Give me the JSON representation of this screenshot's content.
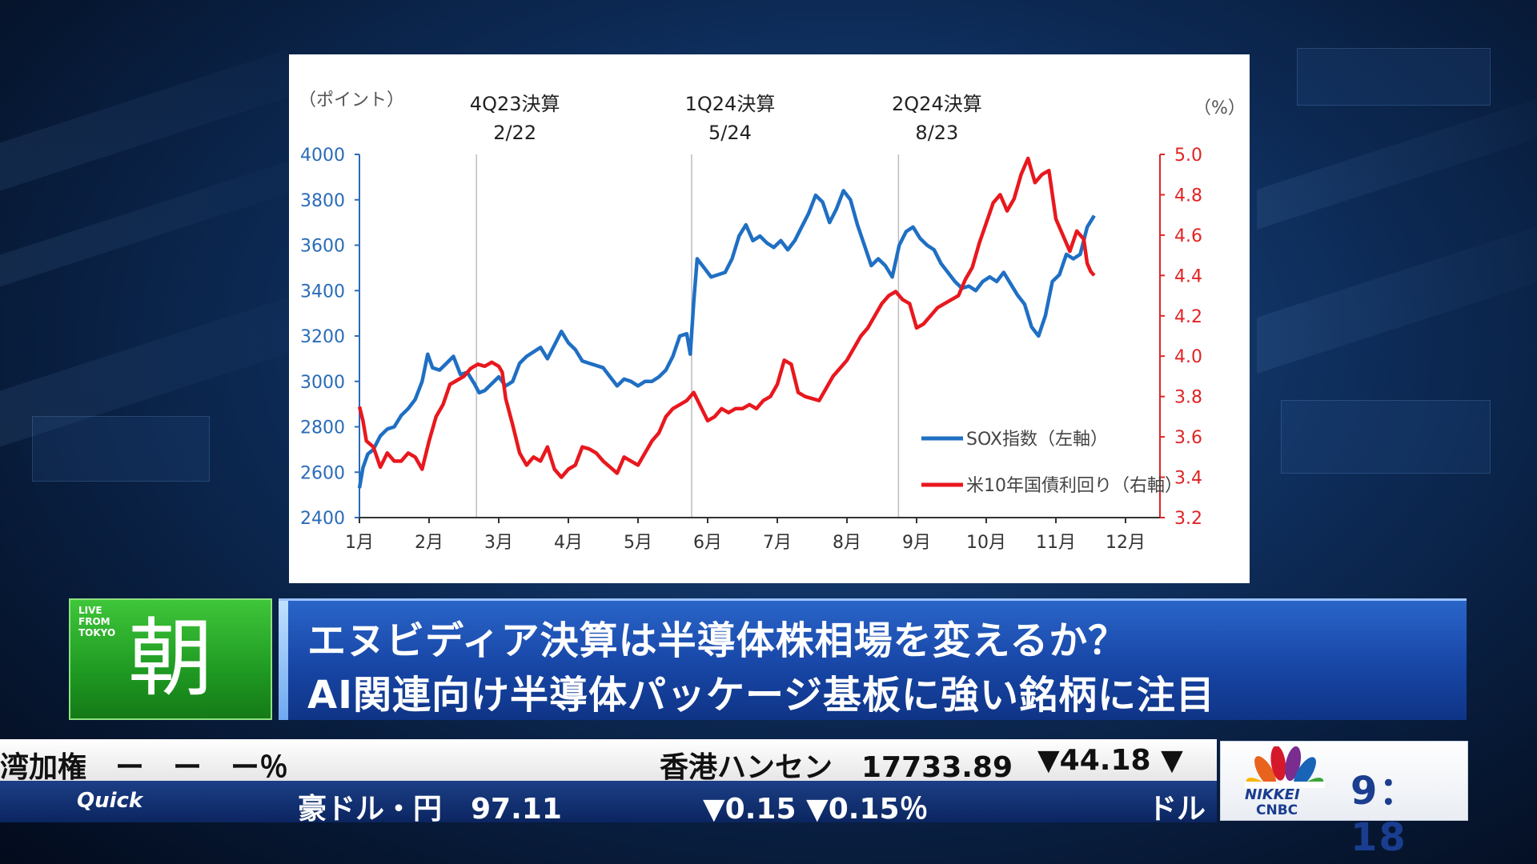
{
  "chart_data": {
    "type": "line",
    "left_axis": {
      "unit_label": "（ポイント）",
      "ticks": [
        "4000",
        "3800",
        "3600",
        "3400",
        "3200",
        "3000",
        "2800",
        "2600",
        "2400"
      ],
      "range": [
        2400,
        4000
      ]
    },
    "right_axis": {
      "unit_label": "（%）",
      "ticks": [
        "5.0",
        "4.8",
        "4.6",
        "4.4",
        "4.2",
        "4.0",
        "3.8",
        "3.6",
        "3.4",
        "3.2"
      ],
      "range": [
        3.2,
        5.0
      ]
    },
    "x_axis": {
      "ticks": [
        "1月",
        "2月",
        "3月",
        "4月",
        "5月",
        "6月",
        "7月",
        "8月",
        "9月",
        "10月",
        "11月",
        "12月"
      ],
      "range": [
        1,
        12
      ]
    },
    "events": [
      {
        "label": "4Q23決算",
        "date": "2/22",
        "x": 2.68
      },
      {
        "label": "1Q24決算",
        "date": "5/24",
        "x": 5.77
      },
      {
        "label": "2Q24決算",
        "date": "8/23",
        "x": 8.74
      }
    ],
    "series": [
      {
        "name": "SOX指数（左軸）",
        "color": "#1f6fc3",
        "axis": "left",
        "points": [
          [
            1.0,
            2530
          ],
          [
            1.05,
            2620
          ],
          [
            1.12,
            2680
          ],
          [
            1.2,
            2700
          ],
          [
            1.3,
            2760
          ],
          [
            1.4,
            2790
          ],
          [
            1.5,
            2800
          ],
          [
            1.6,
            2850
          ],
          [
            1.7,
            2880
          ],
          [
            1.8,
            2920
          ],
          [
            1.9,
            3000
          ],
          [
            1.98,
            3120
          ],
          [
            2.05,
            3060
          ],
          [
            2.15,
            3050
          ],
          [
            2.25,
            3080
          ],
          [
            2.35,
            3110
          ],
          [
            2.45,
            3030
          ],
          [
            2.55,
            3040
          ],
          [
            2.65,
            2990
          ],
          [
            2.72,
            2950
          ],
          [
            2.8,
            2960
          ],
          [
            2.9,
            2990
          ],
          [
            3.0,
            3020
          ],
          [
            3.1,
            2980
          ],
          [
            3.2,
            3000
          ],
          [
            3.3,
            3080
          ],
          [
            3.4,
            3110
          ],
          [
            3.5,
            3130
          ],
          [
            3.6,
            3150
          ],
          [
            3.7,
            3100
          ],
          [
            3.8,
            3160
          ],
          [
            3.9,
            3220
          ],
          [
            4.0,
            3170
          ],
          [
            4.1,
            3140
          ],
          [
            4.2,
            3090
          ],
          [
            4.3,
            3080
          ],
          [
            4.4,
            3070
          ],
          [
            4.5,
            3060
          ],
          [
            4.6,
            3020
          ],
          [
            4.7,
            2980
          ],
          [
            4.8,
            3010
          ],
          [
            4.9,
            3000
          ],
          [
            5.0,
            2980
          ],
          [
            5.1,
            3000
          ],
          [
            5.2,
            3000
          ],
          [
            5.3,
            3020
          ],
          [
            5.4,
            3050
          ],
          [
            5.5,
            3110
          ],
          [
            5.6,
            3200
          ],
          [
            5.7,
            3210
          ],
          [
            5.75,
            3120
          ],
          [
            5.8,
            3350
          ],
          [
            5.85,
            3540
          ],
          [
            5.95,
            3500
          ],
          [
            6.05,
            3460
          ],
          [
            6.15,
            3470
          ],
          [
            6.25,
            3480
          ],
          [
            6.35,
            3540
          ],
          [
            6.45,
            3640
          ],
          [
            6.55,
            3690
          ],
          [
            6.65,
            3620
          ],
          [
            6.75,
            3640
          ],
          [
            6.85,
            3610
          ],
          [
            6.95,
            3590
          ],
          [
            7.05,
            3620
          ],
          [
            7.15,
            3580
          ],
          [
            7.25,
            3620
          ],
          [
            7.35,
            3680
          ],
          [
            7.45,
            3740
          ],
          [
            7.55,
            3820
          ],
          [
            7.65,
            3790
          ],
          [
            7.75,
            3700
          ],
          [
            7.85,
            3760
          ],
          [
            7.95,
            3840
          ],
          [
            8.05,
            3800
          ],
          [
            8.15,
            3690
          ],
          [
            8.25,
            3600
          ],
          [
            8.35,
            3510
          ],
          [
            8.45,
            3540
          ],
          [
            8.55,
            3510
          ],
          [
            8.65,
            3460
          ],
          [
            8.75,
            3600
          ],
          [
            8.85,
            3660
          ],
          [
            8.95,
            3680
          ],
          [
            9.05,
            3630
          ],
          [
            9.15,
            3600
          ],
          [
            9.25,
            3580
          ],
          [
            9.35,
            3520
          ],
          [
            9.45,
            3480
          ],
          [
            9.55,
            3440
          ],
          [
            9.65,
            3410
          ],
          [
            9.75,
            3420
          ],
          [
            9.85,
            3400
          ],
          [
            9.95,
            3440
          ],
          [
            10.05,
            3460
          ],
          [
            10.15,
            3440
          ],
          [
            10.25,
            3480
          ],
          [
            10.35,
            3430
          ],
          [
            10.45,
            3380
          ],
          [
            10.55,
            3340
          ],
          [
            10.65,
            3240
          ],
          [
            10.75,
            3200
          ],
          [
            10.85,
            3290
          ],
          [
            10.95,
            3440
          ],
          [
            11.05,
            3470
          ],
          [
            11.15,
            3560
          ],
          [
            11.25,
            3540
          ],
          [
            11.35,
            3560
          ],
          [
            11.45,
            3680
          ],
          [
            11.55,
            3730
          ]
        ]
      },
      {
        "name": "米10年国債利回り（右軸）",
        "color": "#e8181e",
        "axis": "right",
        "points": [
          [
            1.0,
            3.75
          ],
          [
            1.05,
            3.68
          ],
          [
            1.1,
            3.58
          ],
          [
            1.2,
            3.55
          ],
          [
            1.3,
            3.45
          ],
          [
            1.4,
            3.52
          ],
          [
            1.5,
            3.48
          ],
          [
            1.6,
            3.48
          ],
          [
            1.7,
            3.52
          ],
          [
            1.8,
            3.5
          ],
          [
            1.9,
            3.44
          ],
          [
            2.0,
            3.58
          ],
          [
            2.1,
            3.7
          ],
          [
            2.2,
            3.76
          ],
          [
            2.3,
            3.86
          ],
          [
            2.4,
            3.88
          ],
          [
            2.5,
            3.9
          ],
          [
            2.6,
            3.94
          ],
          [
            2.7,
            3.96
          ],
          [
            2.8,
            3.95
          ],
          [
            2.9,
            3.97
          ],
          [
            3.0,
            3.95
          ],
          [
            3.05,
            3.92
          ],
          [
            3.1,
            3.79
          ],
          [
            3.2,
            3.66
          ],
          [
            3.3,
            3.52
          ],
          [
            3.4,
            3.46
          ],
          [
            3.5,
            3.5
          ],
          [
            3.6,
            3.48
          ],
          [
            3.7,
            3.55
          ],
          [
            3.8,
            3.44
          ],
          [
            3.9,
            3.4
          ],
          [
            4.0,
            3.44
          ],
          [
            4.1,
            3.46
          ],
          [
            4.2,
            3.55
          ],
          [
            4.3,
            3.54
          ],
          [
            4.4,
            3.52
          ],
          [
            4.5,
            3.48
          ],
          [
            4.6,
            3.45
          ],
          [
            4.7,
            3.42
          ],
          [
            4.8,
            3.5
          ],
          [
            4.9,
            3.48
          ],
          [
            5.0,
            3.46
          ],
          [
            5.1,
            3.52
          ],
          [
            5.2,
            3.58
          ],
          [
            5.3,
            3.62
          ],
          [
            5.4,
            3.7
          ],
          [
            5.5,
            3.74
          ],
          [
            5.6,
            3.76
          ],
          [
            5.7,
            3.78
          ],
          [
            5.8,
            3.82
          ],
          [
            5.9,
            3.75
          ],
          [
            6.0,
            3.68
          ],
          [
            6.1,
            3.7
          ],
          [
            6.2,
            3.74
          ],
          [
            6.3,
            3.72
          ],
          [
            6.4,
            3.74
          ],
          [
            6.5,
            3.74
          ],
          [
            6.6,
            3.76
          ],
          [
            6.7,
            3.74
          ],
          [
            6.8,
            3.78
          ],
          [
            6.9,
            3.8
          ],
          [
            7.0,
            3.86
          ],
          [
            7.1,
            3.98
          ],
          [
            7.2,
            3.96
          ],
          [
            7.3,
            3.82
          ],
          [
            7.4,
            3.8
          ],
          [
            7.5,
            3.79
          ],
          [
            7.6,
            3.78
          ],
          [
            7.7,
            3.84
          ],
          [
            7.8,
            3.9
          ],
          [
            7.9,
            3.94
          ],
          [
            8.0,
            3.98
          ],
          [
            8.1,
            4.04
          ],
          [
            8.2,
            4.1
          ],
          [
            8.3,
            4.14
          ],
          [
            8.4,
            4.2
          ],
          [
            8.5,
            4.26
          ],
          [
            8.6,
            4.3
          ],
          [
            8.7,
            4.32
          ],
          [
            8.8,
            4.28
          ],
          [
            8.9,
            4.26
          ],
          [
            9.0,
            4.14
          ],
          [
            9.1,
            4.16
          ],
          [
            9.2,
            4.2
          ],
          [
            9.3,
            4.24
          ],
          [
            9.4,
            4.26
          ],
          [
            9.5,
            4.28
          ],
          [
            9.6,
            4.3
          ],
          [
            9.7,
            4.38
          ],
          [
            9.8,
            4.44
          ],
          [
            9.9,
            4.56
          ],
          [
            10.0,
            4.66
          ],
          [
            10.1,
            4.76
          ],
          [
            10.2,
            4.8
          ],
          [
            10.3,
            4.72
          ],
          [
            10.4,
            4.78
          ],
          [
            10.5,
            4.9
          ],
          [
            10.6,
            4.98
          ],
          [
            10.7,
            4.86
          ],
          [
            10.8,
            4.9
          ],
          [
            10.9,
            4.92
          ],
          [
            11.0,
            4.68
          ],
          [
            11.1,
            4.6
          ],
          [
            11.2,
            4.52
          ],
          [
            11.3,
            4.62
          ],
          [
            11.4,
            4.58
          ],
          [
            11.45,
            4.46
          ],
          [
            11.5,
            4.42
          ],
          [
            11.55,
            4.4
          ]
        ]
      }
    ],
    "legend": {
      "position": "bottom-right"
    },
    "grid": {
      "vertical_event_lines": true,
      "horizontal": false
    }
  },
  "show": {
    "live_label_1": "LIVE",
    "live_label_2": "FROM",
    "live_label_3": "TOKYO",
    "name": "朝"
  },
  "headline": {
    "line1": "エヌビディア決算は半導体株相場を変えるか？",
    "line2": "AI関連向け半導体パッケージ基板に強い銘柄に注目"
  },
  "ticker": {
    "top": [
      {
        "text": "湾加権　ー　ー　ー％"
      },
      {
        "text": "香港ハンセン　17733.89"
      },
      {
        "text": "▼44.18 ▼"
      }
    ],
    "bottom": [
      {
        "text": "Quick"
      },
      {
        "text": "豪ドル・円　97.11"
      },
      {
        "text": "▼0.15 ▼0.15％"
      },
      {
        "text": "ドル"
      }
    ]
  },
  "brand": {
    "name1": "NIKKEI",
    "name2": "CNBC",
    "time": "9：18"
  },
  "colors": {
    "sox": "#1f6fc3",
    "yield": "#e8181e",
    "headline_bg": "#1746a6",
    "logo_green": "#1f9a22"
  }
}
